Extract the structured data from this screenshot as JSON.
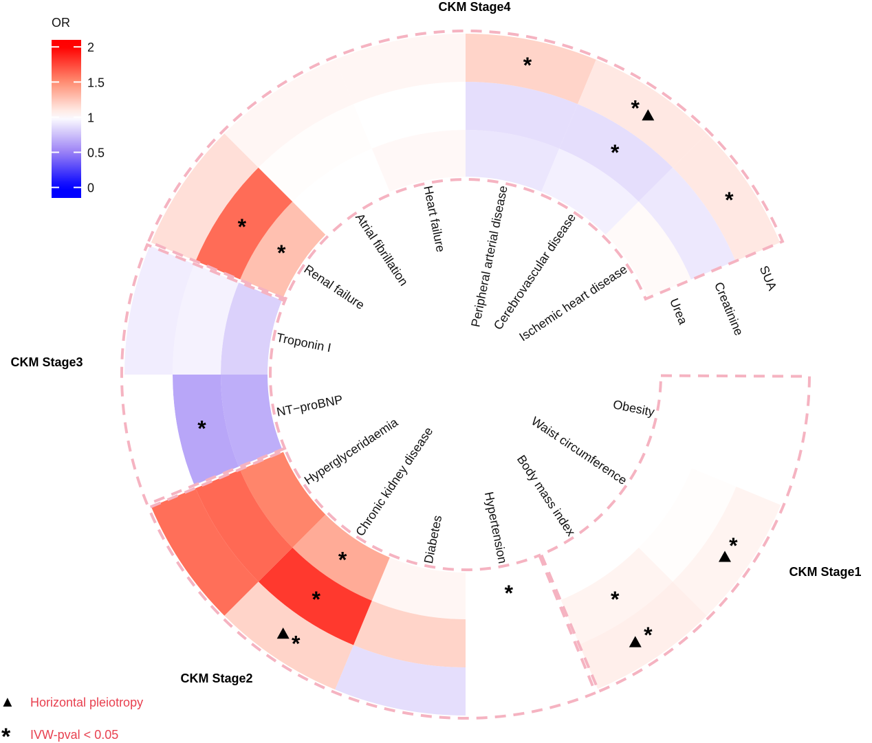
{
  "chart_data": {
    "type": "heatmap",
    "layout": "circular",
    "rings": [
      "Urea",
      "Creatinine",
      "SUA"
    ],
    "ring_order": "inner-to-outer",
    "groups": [
      {
        "name": "CKM Stage1",
        "outcomes": [
          "Obesity",
          "Waist circumference",
          "Body mass index"
        ]
      },
      {
        "name": "CKM Stage2",
        "outcomes": [
          "Hypertension",
          "Diabetes",
          "Chronic kidney disease",
          "Hyperglyceridaemia"
        ]
      },
      {
        "name": "CKM Stage3",
        "outcomes": [
          "NT−proBNP",
          "Troponin I"
        ]
      },
      {
        "name": "CKM Stage4",
        "outcomes": [
          "Renal failure",
          "Atrial fibrillation",
          "Heart failure",
          "Peripheral arterial disease",
          "Cerebrovascular disease",
          "Ischemic heart disease"
        ]
      }
    ],
    "cells": [
      {
        "outcome": "Obesity",
        "group": "CKM Stage1",
        "or": [
          1.0,
          1.0,
          1.0
        ],
        "ivw_sig": [
          false,
          false,
          false
        ],
        "pleiotropy": [
          false,
          false,
          false
        ]
      },
      {
        "outcome": "Waist circumference",
        "group": "CKM Stage1",
        "or": [
          1.0,
          1.01,
          1.05
        ],
        "ivw_sig": [
          false,
          false,
          true
        ],
        "pleiotropy": [
          false,
          false,
          true
        ]
      },
      {
        "outcome": "Body mass index",
        "group": "CKM Stage1",
        "or": [
          1.0,
          1.05,
          1.07
        ],
        "ivw_sig": [
          false,
          true,
          true
        ],
        "pleiotropy": [
          false,
          false,
          true
        ]
      },
      {
        "outcome": "Hypertension",
        "group": "CKM Stage2",
        "or": [
          1.0,
          1.0,
          1.0
        ],
        "ivw_sig": [
          true,
          false,
          false
        ],
        "pleiotropy": [
          false,
          false,
          false
        ]
      },
      {
        "outcome": "Diabetes",
        "group": "CKM Stage2",
        "or": [
          1.04,
          1.19,
          0.87
        ],
        "ivw_sig": [
          false,
          false,
          false
        ],
        "pleiotropy": [
          false,
          false,
          false
        ]
      },
      {
        "outcome": "Chronic kidney disease",
        "group": "CKM Stage2",
        "or": [
          1.37,
          1.8,
          1.19
        ],
        "ivw_sig": [
          true,
          true,
          true
        ],
        "pleiotropy": [
          false,
          false,
          true
        ]
      },
      {
        "outcome": "Hyperglyceridaemia",
        "group": "CKM Stage2",
        "or": [
          1.53,
          1.63,
          1.61
        ],
        "ivw_sig": [
          false,
          false,
          false
        ],
        "pleiotropy": [
          false,
          false,
          false
        ]
      },
      {
        "outcome": "NT−proBNP",
        "group": "CKM Stage3",
        "or": [
          0.68,
          0.65,
          1.0
        ],
        "ivw_sig": [
          false,
          true,
          false
        ],
        "pleiotropy": [
          false,
          false,
          false
        ]
      },
      {
        "outcome": "Troponin I",
        "group": "CKM Stage3",
        "or": [
          0.82,
          0.95,
          0.93
        ],
        "ivw_sig": [
          false,
          false,
          false
        ],
        "pleiotropy": [
          false,
          false,
          false
        ]
      },
      {
        "outcome": "Renal failure",
        "group": "CKM Stage4",
        "or": [
          1.28,
          1.62,
          1.14
        ],
        "ivw_sig": [
          true,
          true,
          false
        ],
        "pleiotropy": [
          false,
          false,
          false
        ]
      },
      {
        "outcome": "Atrial fibrillation",
        "group": "CKM Stage4",
        "or": [
          1.0,
          1.01,
          1.04
        ],
        "ivw_sig": [
          false,
          false,
          false
        ],
        "pleiotropy": [
          false,
          false,
          false
        ]
      },
      {
        "outcome": "Heart failure",
        "group": "CKM Stage4",
        "or": [
          1.03,
          1.0,
          1.04
        ],
        "ivw_sig": [
          false,
          false,
          false
        ],
        "pleiotropy": [
          false,
          false,
          false
        ]
      },
      {
        "outcome": "Peripheral arterial disease",
        "group": "CKM Stage4",
        "or": [
          0.9,
          0.87,
          1.19
        ],
        "ivw_sig": [
          false,
          false,
          true
        ],
        "pleiotropy": [
          false,
          false,
          false
        ]
      },
      {
        "outcome": "Cerebrovascular disease",
        "group": "CKM Stage4",
        "or": [
          0.94,
          0.87,
          1.1
        ],
        "ivw_sig": [
          false,
          true,
          true
        ],
        "pleiotropy": [
          false,
          false,
          true
        ]
      },
      {
        "outcome": "Ischemic heart disease",
        "group": "CKM Stage4",
        "or": [
          1.02,
          0.91,
          1.1
        ],
        "ivw_sig": [
          false,
          false,
          true
        ],
        "pleiotropy": [
          false,
          false,
          false
        ]
      }
    ],
    "color_scale": {
      "title": "OR",
      "ticks": [
        "0",
        "0.5",
        "1",
        "1.5",
        "2"
      ],
      "stops": [
        [
          0,
          "#0000ff"
        ],
        [
          0.5,
          "#9a80f5"
        ],
        [
          1,
          "#ffffff"
        ],
        [
          1.5,
          "#ff8e72"
        ],
        [
          2,
          "#ff0000"
        ]
      ],
      "placement": "top-left"
    },
    "symbol_legend": [
      {
        "symbol": "▲",
        "name": "triangle-icon",
        "label": "Horizontal pleiotropy"
      },
      {
        "symbol": "*",
        "name": "asterisk-icon",
        "label": "IVW-pval < 0.05"
      }
    ],
    "symbol_legend_placement": "bottom-left",
    "outline_color": "#f5b3c1",
    "legend_text_color": "#e8404f"
  }
}
